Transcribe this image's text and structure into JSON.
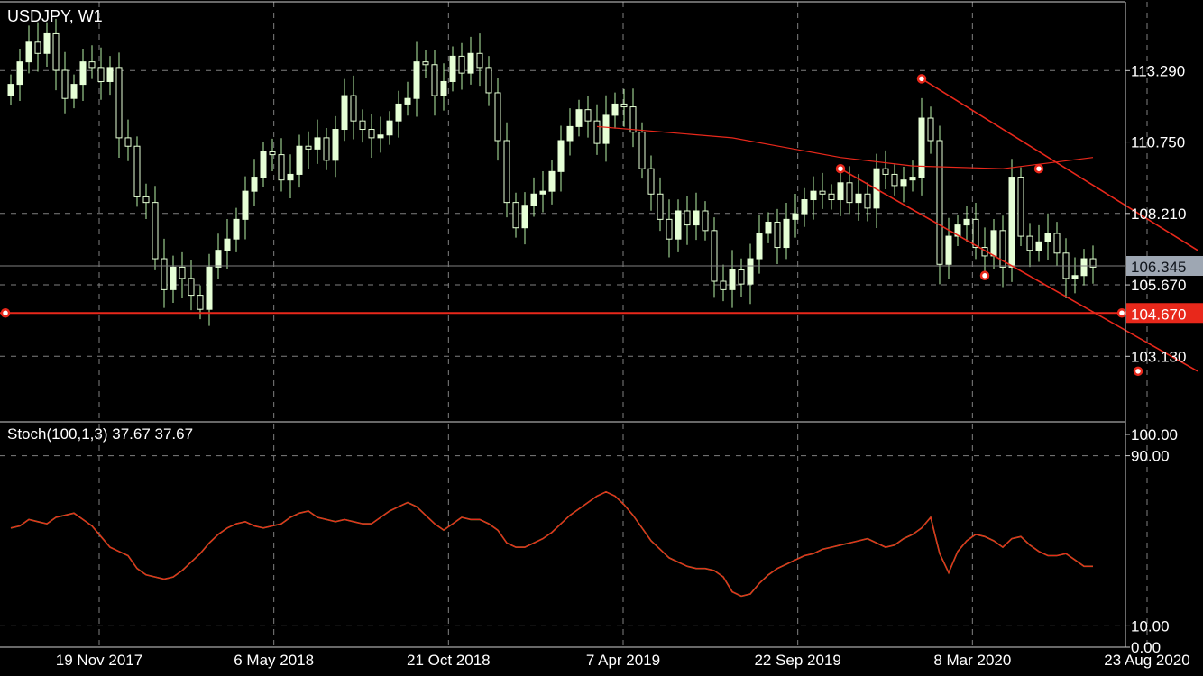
{
  "header": {
    "title": "USDJPY, W1"
  },
  "indicator": {
    "title": "Stoch(100,1,3) 37.67 37.67"
  },
  "colors": {
    "background": "#000000",
    "bull_candle": "#e6ffd6",
    "wick": "#b9f5a8",
    "grid": "#7f7f7f",
    "sr_line": "#e8281b",
    "stoch_line": "#e8281b",
    "current_price_badge": "#9ea7b3"
  },
  "chart_data": [
    {
      "type": "candlestick",
      "symbol": "USDJPY",
      "timeframe": "W1",
      "ylim": [
        100.8,
        115.8
      ],
      "y_ticks": [
        "113.290",
        "110.750",
        "108.210",
        "105.670",
        "103.130"
      ],
      "x_ticks": [
        "19 Nov 2017",
        "6 May 2018",
        "21 Oct 2018",
        "7 Apr 2019",
        "22 Sep 2019",
        "8 Mar 2020",
        "23 Aug 2020"
      ],
      "grid": true,
      "current_price": "106.345",
      "horizontal_line": {
        "label": "104.670",
        "value": 104.67
      },
      "close_series": [
        112.8,
        113.6,
        114.3,
        113.9,
        114.6,
        113.3,
        112.3,
        112.8,
        113.6,
        113.4,
        112.9,
        113.4,
        110.9,
        110.6,
        108.8,
        108.6,
        106.6,
        105.5,
        106.3,
        105.9,
        105.3,
        104.8,
        106.3,
        106.9,
        107.3,
        108.0,
        109.0,
        109.5,
        110.4,
        110.3,
        109.4,
        109.6,
        110.6,
        110.5,
        110.9,
        110.1,
        111.2,
        112.4,
        111.5,
        111.2,
        110.9,
        111.0,
        111.5,
        112.1,
        112.3,
        113.6,
        113.5,
        112.4,
        112.9,
        113.8,
        113.2,
        113.9,
        113.4,
        112.5,
        110.8,
        108.6,
        107.7,
        108.5,
        108.9,
        109.0,
        109.7,
        110.8,
        111.3,
        111.9,
        111.5,
        110.7,
        111.7,
        112.1,
        112.0,
        111.1,
        109.8,
        108.9,
        108.0,
        107.3,
        108.3,
        107.8,
        108.3,
        107.6,
        105.8,
        105.5,
        106.2,
        105.7,
        106.6,
        107.5,
        107.9,
        107.0,
        108.0,
        108.2,
        108.7,
        109.0,
        108.9,
        108.7,
        109.3,
        108.6,
        108.9,
        108.4,
        109.8,
        109.6,
        109.2,
        109.4,
        109.5,
        111.6,
        110.8,
        106.4,
        107.4,
        107.8,
        108.0,
        107.0,
        106.7,
        107.6,
        106.3,
        109.5,
        107.4,
        106.9,
        107.2,
        107.5,
        106.8,
        105.9,
        106.0,
        106.6,
        106.3
      ],
      "ma_series": [
        {
          "x_index": 65,
          "value": 111.3
        },
        {
          "x_index": 80,
          "value": 110.9
        },
        {
          "x_index": 92,
          "value": 110.2
        },
        {
          "x_index": 100,
          "value": 109.9
        },
        {
          "x_index": 110,
          "value": 109.8
        },
        {
          "x_index": 120,
          "value": 110.2
        }
      ],
      "trend_lines": [
        {
          "from": {
            "x_index": 101,
            "value": 113.0
          },
          "to": {
            "x_index": 126,
            "value": 106.9
          }
        },
        {
          "from": {
            "x_index": 92,
            "value": 109.8
          },
          "to": {
            "x_index": 125,
            "value": 102.6
          }
        }
      ],
      "trend_markers": [
        {
          "x_index": 101,
          "value": 113.0
        },
        {
          "x_index": 114,
          "value": 109.8
        },
        {
          "x_index": 92,
          "value": 109.8
        },
        {
          "x_index": 108,
          "value": 106.0
        },
        {
          "x_index": 125,
          "value": 102.6
        }
      ]
    },
    {
      "type": "line",
      "name": "Stoch(100,1,3)",
      "ylim": [
        0,
        100
      ],
      "y_ticks": [
        "100.00",
        "90.00",
        "10.00",
        "0.00"
      ],
      "current_value": 37.67,
      "values": [
        56,
        57,
        60,
        59,
        58,
        61,
        62,
        63,
        60,
        57,
        52,
        47,
        45,
        43,
        37,
        34,
        33,
        32,
        33,
        36,
        40,
        44,
        49,
        53,
        56,
        58,
        59,
        57,
        56,
        57,
        58,
        61,
        63,
        64,
        61,
        60,
        59,
        60,
        59,
        58,
        58,
        61,
        64,
        66,
        68,
        66,
        62,
        58,
        55,
        58,
        61,
        60,
        60,
        58,
        55,
        49,
        47,
        47,
        49,
        51,
        54,
        58,
        62,
        65,
        68,
        71,
        73,
        71,
        67,
        62,
        56,
        50,
        46,
        42,
        40,
        38,
        37,
        37,
        36,
        33,
        26,
        24,
        25,
        30,
        34,
        37,
        39,
        41,
        43,
        44,
        46,
        47,
        48,
        49,
        50,
        51,
        49,
        47,
        48,
        51,
        53,
        56,
        61,
        44,
        35,
        45,
        50,
        53,
        52,
        50,
        47,
        51,
        52,
        48,
        45,
        43,
        43,
        44,
        41,
        38,
        38
      ]
    }
  ]
}
